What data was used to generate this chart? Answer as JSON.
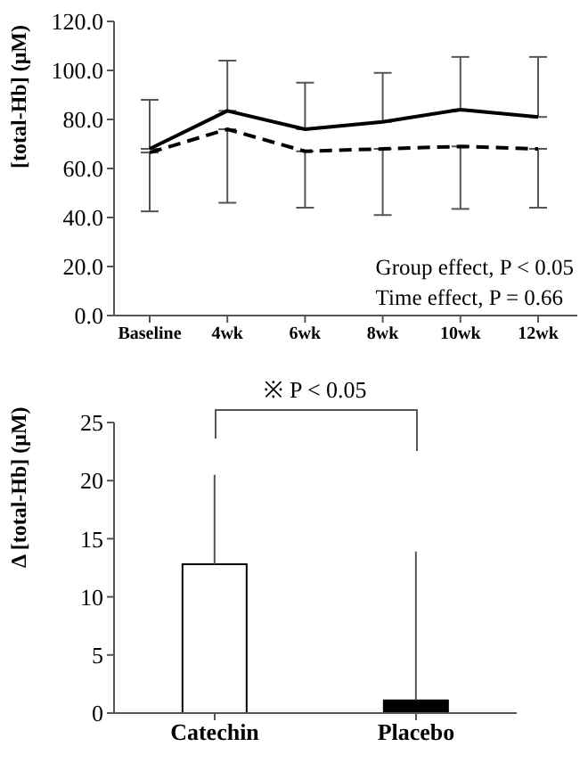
{
  "chart_data": [
    {
      "type": "line",
      "ylabel": "[total-Hb] (μM)",
      "categories": [
        "Baseline",
        "4wk",
        "6wk",
        "8wk",
        "10wk",
        "12wk"
      ],
      "series": [
        {
          "color": "#000000",
          "line_style": "solid",
          "values": [
            68,
            83.5,
            76,
            79,
            84,
            81
          ],
          "errors": [
            [
              68,
              88
            ],
            [
              83.5,
              104
            ],
            [
              76,
              95
            ],
            [
              79,
              99
            ],
            [
              84,
              105.5
            ],
            [
              81,
              105.5
            ]
          ]
        },
        {
          "color": "#000000",
          "line_style": "dashed",
          "values": [
            66.5,
            76,
            67,
            68,
            69,
            68
          ],
          "errors": [
            [
              42.5,
              66.5
            ],
            [
              46,
              76
            ],
            [
              44,
              67
            ],
            [
              41,
              68
            ],
            [
              43.5,
              69
            ],
            [
              44,
              68
            ]
          ]
        }
      ],
      "ylim": [
        0,
        120
      ],
      "yticks": [
        {
          "value": 0,
          "label": "0.0"
        },
        {
          "value": 20,
          "label": "20.0"
        },
        {
          "value": 40,
          "label": "40.0"
        },
        {
          "value": 60,
          "label": "60.0"
        },
        {
          "value": 80,
          "label": "80.0"
        },
        {
          "value": 100,
          "label": "100.0"
        },
        {
          "value": 120,
          "label": "120.0"
        }
      ],
      "marker": "none",
      "annotations": [
        "Group effect, P < 0.05",
        "Time effect, P = 0.66"
      ]
    },
    {
      "type": "bar",
      "ylabel": "Δ [total-Hb] (μM)",
      "categories": [
        "Catechin",
        "Placebo"
      ],
      "values": [
        12.8,
        1.1
      ],
      "colors": [
        "#ffffff",
        "#000000"
      ],
      "errors": [
        [
          12.8,
          20.5
        ],
        [
          1.1,
          13.9
        ]
      ],
      "ylim": [
        0,
        25
      ],
      "yticks": [
        0,
        5,
        10,
        15,
        20,
        25
      ],
      "annotations": [
        "※ P < 0.05"
      ]
    }
  ]
}
